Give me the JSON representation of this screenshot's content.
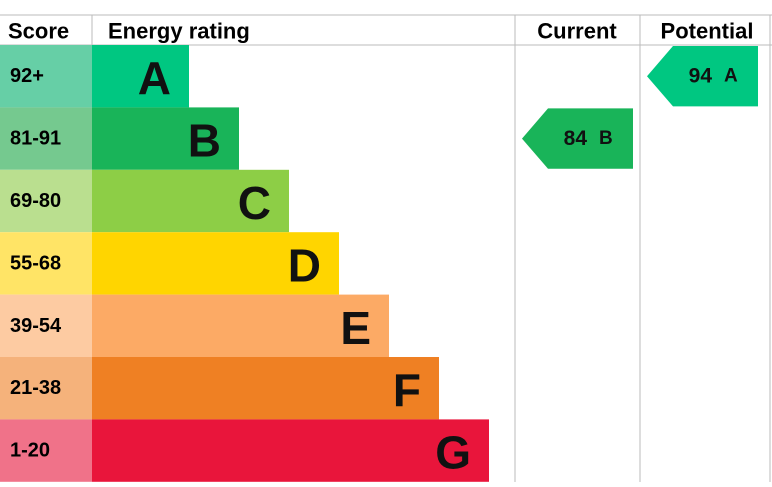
{
  "header": {
    "score": "Score",
    "rating": "Energy rating",
    "current": "Current",
    "potential": "Potential"
  },
  "bands": [
    {
      "score": "92+",
      "letter": "A",
      "color": "#00c781",
      "score_color": "#66cfa6"
    },
    {
      "score": "81-91",
      "letter": "B",
      "color": "#19b459",
      "score_color": "#75c98f"
    },
    {
      "score": "69-80",
      "letter": "C",
      "color": "#8dce46",
      "score_color": "#badf8f"
    },
    {
      "score": "55-68",
      "letter": "D",
      "color": "#ffd500",
      "score_color": "#ffe466"
    },
    {
      "score": "39-54",
      "letter": "E",
      "color": "#fcaa65",
      "score_color": "#fdcba2"
    },
    {
      "score": "21-38",
      "letter": "F",
      "color": "#ef8023",
      "score_color": "#f5b27b"
    },
    {
      "score": "1-20",
      "letter": "G",
      "color": "#e9153b",
      "score_color": "#f07289"
    }
  ],
  "current": {
    "value": "84",
    "letter": "B"
  },
  "potential": {
    "value": "94",
    "letter": "A"
  }
}
